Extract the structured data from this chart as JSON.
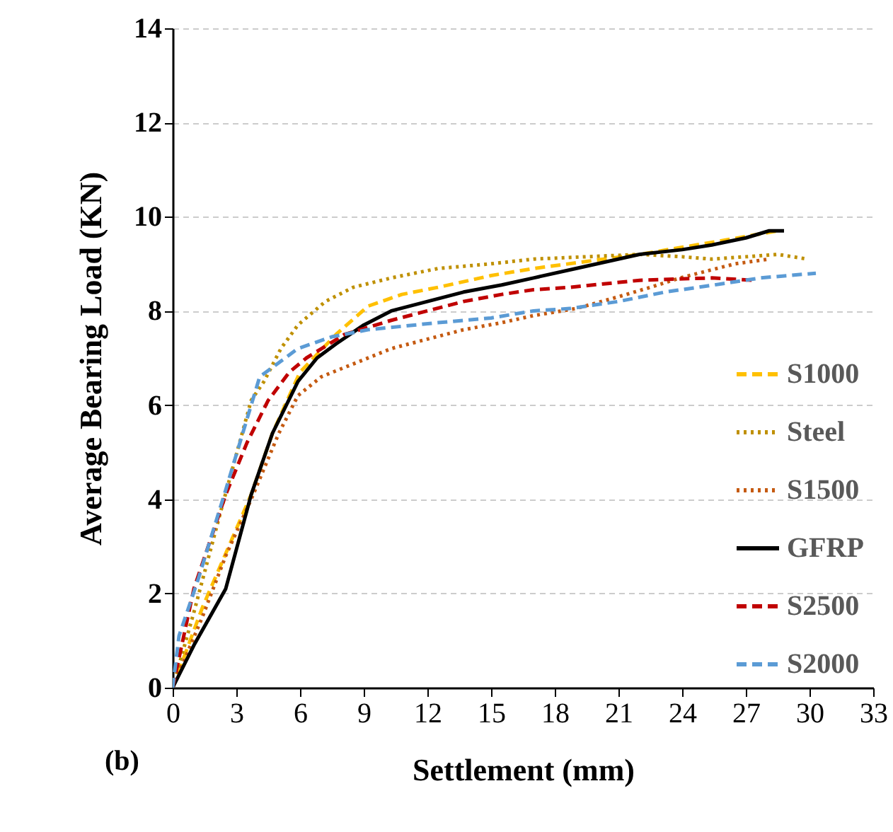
{
  "chart_data": {
    "type": "line",
    "xlabel": "Settlement (mm)",
    "ylabel": "Average Bearing Load (KN)",
    "annotations": [
      "(b)"
    ],
    "xlim": [
      0,
      33
    ],
    "xticks": [
      0,
      3,
      6,
      9,
      12,
      15,
      18,
      21,
      24,
      27,
      30,
      33
    ],
    "ylim": [
      0,
      14
    ],
    "yticks": [
      0,
      2,
      4,
      6,
      8,
      10,
      12,
      14
    ],
    "grid": "y",
    "legend": "bottom right",
    "series": [
      {
        "name": "S1000",
        "color": "#ffc000",
        "line_style": "dashed",
        "x": [
          0,
          1.4,
          3.7,
          4.7,
          6,
          7.7,
          9.2,
          10.8,
          12.5,
          15,
          17,
          19.5,
          22,
          24,
          26,
          28.5
        ],
        "values": [
          0,
          1.7,
          4.1,
          5.4,
          6.7,
          7.5,
          8.1,
          8.35,
          8.5,
          8.75,
          8.9,
          9.05,
          9.2,
          9.35,
          9.5,
          9.7
        ]
      },
      {
        "name": "Steel",
        "color": "#bf9000",
        "line_style": "dotted",
        "x": [
          0,
          1,
          2.3,
          3.7,
          4.3,
          5.1,
          5.9,
          7.2,
          8.5,
          10.3,
          12.5,
          15,
          17,
          19.5,
          22,
          24,
          25.4,
          27,
          28.5,
          29.9
        ],
        "values": [
          0,
          1.6,
          3.8,
          6.1,
          6.5,
          7.2,
          7.7,
          8.2,
          8.5,
          8.7,
          8.9,
          9.0,
          9.1,
          9.15,
          9.2,
          9.15,
          9.1,
          9.15,
          9.2,
          9.1
        ]
      },
      {
        "name": "S1500",
        "color": "#c55a11",
        "line_style": "dotted",
        "x": [
          0,
          1.4,
          2.5,
          3.7,
          5,
          5.9,
          7,
          8.1,
          10.3,
          12,
          13.7,
          15.5,
          17,
          19,
          21,
          22.5,
          23.9,
          25.2,
          26.5,
          28.1
        ],
        "values": [
          0,
          1.5,
          2.8,
          4.0,
          5.4,
          6.2,
          6.6,
          6.8,
          7.2,
          7.4,
          7.6,
          7.75,
          7.9,
          8.05,
          8.3,
          8.5,
          8.7,
          8.85,
          9.0,
          9.1
        ]
      },
      {
        "name": "GFRP",
        "color": "#000000",
        "line_style": "solid",
        "x": [
          0,
          1,
          2.5,
          3.7,
          4.7,
          5.9,
          6.8,
          7.7,
          9,
          10.3,
          12,
          13.7,
          15.5,
          17,
          19,
          22,
          24,
          25.4,
          27,
          28.1,
          28.8
        ],
        "values": [
          0,
          0.9,
          2.1,
          4.1,
          5.4,
          6.5,
          7.0,
          7.3,
          7.7,
          8.0,
          8.2,
          8.4,
          8.55,
          8.7,
          8.9,
          9.2,
          9.3,
          9.4,
          9.55,
          9.7,
          9.7
        ]
      },
      {
        "name": "S2500",
        "color": "#c00000",
        "line_style": "dashed",
        "x": [
          0,
          1,
          2.5,
          3.5,
          4.5,
          5.5,
          6.3,
          8.1,
          10.3,
          12,
          13.7,
          15.5,
          17,
          18.7,
          22,
          25.4,
          27.4
        ],
        "values": [
          0,
          2.1,
          4.1,
          5.2,
          6.1,
          6.7,
          7.0,
          7.5,
          7.8,
          8.0,
          8.2,
          8.35,
          8.45,
          8.5,
          8.65,
          8.7,
          8.65
        ]
      },
      {
        "name": "S2000",
        "color": "#5b9bd5",
        "line_style": "dashed",
        "x": [
          0,
          0.3,
          1.2,
          2.5,
          3.3,
          4.1,
          5,
          5.9,
          7.5,
          9.2,
          12.5,
          15,
          17,
          18.7,
          21,
          23.2,
          25.5,
          27.7,
          30.3
        ],
        "values": [
          0,
          1.1,
          2.3,
          4.2,
          5.4,
          6.6,
          6.9,
          7.2,
          7.45,
          7.6,
          7.75,
          7.85,
          8.0,
          8.05,
          8.2,
          8.4,
          8.55,
          8.7,
          8.8
        ]
      }
    ]
  }
}
